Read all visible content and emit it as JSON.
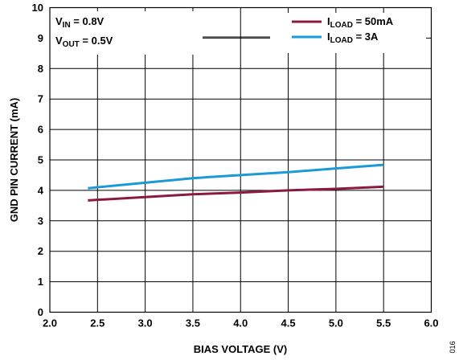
{
  "chart_data": {
    "type": "line",
    "xlabel": "BIAS VOLTAGE (V)",
    "ylabel": "GND PIN CURRENT (mA)",
    "xlim": [
      2.0,
      6.0
    ],
    "ylim": [
      0,
      10
    ],
    "x_ticks": [
      "2.0",
      "2.5",
      "3.0",
      "3.5",
      "4.0",
      "4.5",
      "5.0",
      "5.5",
      "6.0"
    ],
    "y_ticks": [
      "0",
      "1",
      "2",
      "3",
      "4",
      "5",
      "6",
      "7",
      "8",
      "9",
      "10"
    ],
    "grid": true,
    "legend_position": "top-right",
    "annotations": [
      {
        "main": "V",
        "sub": "IN",
        "rest": " = 0.8V"
      },
      {
        "main": "V",
        "sub": "OUT",
        "rest": " = 0.5V"
      }
    ],
    "figure_code": "016",
    "series": [
      {
        "legend_main": "I",
        "legend_sub": "LOAD",
        "legend_rest": " = 50mA",
        "color": "#8b1a3f",
        "x": [
          2.4,
          3.0,
          3.5,
          4.0,
          4.5,
          5.0,
          5.5
        ],
        "y": [
          3.67,
          3.78,
          3.87,
          3.93,
          4.0,
          4.05,
          4.12
        ]
      },
      {
        "legend_main": "I",
        "legend_sub": "LOAD",
        "legend_rest": " = 3A",
        "color": "#1a9ad6",
        "x": [
          2.4,
          3.0,
          3.5,
          4.0,
          4.5,
          5.0,
          5.5
        ],
        "y": [
          4.07,
          4.25,
          4.4,
          4.5,
          4.6,
          4.72,
          4.84
        ]
      }
    ]
  }
}
